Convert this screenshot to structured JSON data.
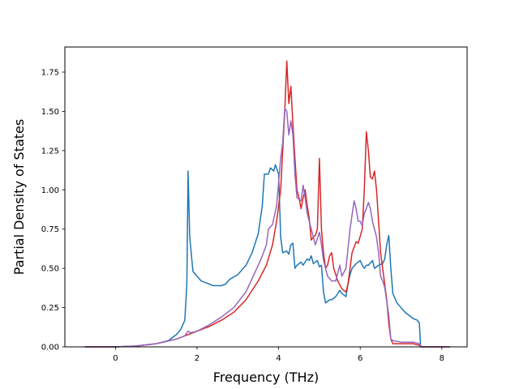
{
  "chart_data": {
    "type": "line",
    "title": "",
    "xlabel": "Frequency (THz)",
    "ylabel": "Partial Density of States",
    "xlim": [
      -1.24,
      8.62
    ],
    "ylim": [
      0.0,
      1.91
    ],
    "xticks": [
      0,
      2,
      4,
      6,
      8
    ],
    "xtick_labels": [
      "0",
      "2",
      "4",
      "6",
      "8"
    ],
    "yticks": [
      0.0,
      0.25,
      0.5,
      0.75,
      1.0,
      1.25,
      1.5,
      1.75
    ],
    "ytick_labels": [
      "0.00",
      "0.25",
      "0.50",
      "0.75",
      "1.00",
      "1.25",
      "1.50",
      "1.75"
    ],
    "grid": false,
    "legend": "none",
    "series": [
      {
        "color": "#1f77b4",
        "points": [
          [
            -0.75,
            0
          ],
          [
            0,
            0
          ],
          [
            0.5,
            0.005
          ],
          [
            1.0,
            0.02
          ],
          [
            1.3,
            0.04
          ],
          [
            1.5,
            0.08
          ],
          [
            1.6,
            0.11
          ],
          [
            1.7,
            0.17
          ],
          [
            1.75,
            0.4
          ],
          [
            1.78,
            1.12
          ],
          [
            1.82,
            0.7
          ],
          [
            1.9,
            0.48
          ],
          [
            2.0,
            0.45
          ],
          [
            2.1,
            0.42
          ],
          [
            2.2,
            0.41
          ],
          [
            2.4,
            0.39
          ],
          [
            2.6,
            0.39
          ],
          [
            2.7,
            0.4
          ],
          [
            2.8,
            0.43
          ],
          [
            3.0,
            0.46
          ],
          [
            3.2,
            0.52
          ],
          [
            3.35,
            0.6
          ],
          [
            3.5,
            0.72
          ],
          [
            3.6,
            0.9
          ],
          [
            3.65,
            1.1
          ],
          [
            3.75,
            1.1
          ],
          [
            3.8,
            1.14
          ],
          [
            3.88,
            1.12
          ],
          [
            3.92,
            1.16
          ],
          [
            4.0,
            1.1
          ],
          [
            4.05,
            0.7
          ],
          [
            4.1,
            0.6
          ],
          [
            4.2,
            0.61
          ],
          [
            4.25,
            0.59
          ],
          [
            4.3,
            0.65
          ],
          [
            4.35,
            0.66
          ],
          [
            4.4,
            0.5
          ],
          [
            4.45,
            0.52
          ],
          [
            4.55,
            0.54
          ],
          [
            4.6,
            0.52
          ],
          [
            4.7,
            0.56
          ],
          [
            4.75,
            0.55
          ],
          [
            4.8,
            0.58
          ],
          [
            4.85,
            0.53
          ],
          [
            4.95,
            0.55
          ],
          [
            5.0,
            0.51
          ],
          [
            5.05,
            0.52
          ],
          [
            5.1,
            0.35
          ],
          [
            5.15,
            0.28
          ],
          [
            5.25,
            0.3
          ],
          [
            5.3,
            0.3
          ],
          [
            5.4,
            0.32
          ],
          [
            5.5,
            0.36
          ],
          [
            5.55,
            0.34
          ],
          [
            5.6,
            0.33
          ],
          [
            5.65,
            0.32
          ],
          [
            5.7,
            0.4
          ],
          [
            5.75,
            0.46
          ],
          [
            5.8,
            0.5
          ],
          [
            5.9,
            0.53
          ],
          [
            6.0,
            0.55
          ],
          [
            6.05,
            0.52
          ],
          [
            6.1,
            0.5
          ],
          [
            6.15,
            0.52
          ],
          [
            6.2,
            0.52
          ],
          [
            6.3,
            0.55
          ],
          [
            6.35,
            0.5
          ],
          [
            6.45,
            0.52
          ],
          [
            6.55,
            0.53
          ],
          [
            6.6,
            0.56
          ],
          [
            6.65,
            0.65
          ],
          [
            6.7,
            0.71
          ],
          [
            6.75,
            0.5
          ],
          [
            6.8,
            0.34
          ],
          [
            6.9,
            0.28
          ],
          [
            7.0,
            0.25
          ],
          [
            7.1,
            0.22
          ],
          [
            7.2,
            0.2
          ],
          [
            7.3,
            0.18
          ],
          [
            7.4,
            0.17
          ],
          [
            7.45,
            0.15
          ],
          [
            7.48,
            0.0
          ],
          [
            8.1,
            0.0
          ]
        ]
      },
      {
        "color": "#d62728",
        "points": [
          [
            -0.75,
            0
          ],
          [
            0,
            0
          ],
          [
            0.5,
            0.005
          ],
          [
            1.0,
            0.02
          ],
          [
            1.5,
            0.05
          ],
          [
            1.7,
            0.07
          ],
          [
            1.8,
            0.08
          ],
          [
            2.0,
            0.1
          ],
          [
            2.3,
            0.13
          ],
          [
            2.6,
            0.17
          ],
          [
            2.9,
            0.22
          ],
          [
            3.2,
            0.3
          ],
          [
            3.5,
            0.42
          ],
          [
            3.7,
            0.52
          ],
          [
            3.85,
            0.65
          ],
          [
            3.95,
            0.8
          ],
          [
            4.05,
            1.0
          ],
          [
            4.1,
            1.25
          ],
          [
            4.15,
            1.5
          ],
          [
            4.2,
            1.82
          ],
          [
            4.25,
            1.55
          ],
          [
            4.3,
            1.66
          ],
          [
            4.35,
            1.42
          ],
          [
            4.4,
            1.2
          ],
          [
            4.45,
            1.0
          ],
          [
            4.5,
            0.95
          ],
          [
            4.55,
            0.88
          ],
          [
            4.6,
            0.95
          ],
          [
            4.65,
            1.0
          ],
          [
            4.7,
            0.9
          ],
          [
            4.75,
            0.82
          ],
          [
            4.8,
            0.68
          ],
          [
            4.85,
            0.7
          ],
          [
            4.9,
            0.71
          ],
          [
            4.95,
            0.75
          ],
          [
            5.0,
            1.2
          ],
          [
            5.05,
            0.75
          ],
          [
            5.1,
            0.6
          ],
          [
            5.15,
            0.5
          ],
          [
            5.2,
            0.52
          ],
          [
            5.25,
            0.58
          ],
          [
            5.3,
            0.6
          ],
          [
            5.35,
            0.5
          ],
          [
            5.45,
            0.42
          ],
          [
            5.55,
            0.37
          ],
          [
            5.65,
            0.35
          ],
          [
            5.7,
            0.4
          ],
          [
            5.8,
            0.6
          ],
          [
            5.9,
            0.67
          ],
          [
            5.95,
            0.66
          ],
          [
            6.05,
            0.75
          ],
          [
            6.1,
            1.0
          ],
          [
            6.15,
            1.37
          ],
          [
            6.2,
            1.25
          ],
          [
            6.25,
            1.08
          ],
          [
            6.3,
            1.07
          ],
          [
            6.35,
            1.12
          ],
          [
            6.4,
            1.0
          ],
          [
            6.45,
            0.8
          ],
          [
            6.5,
            0.6
          ],
          [
            6.6,
            0.4
          ],
          [
            6.65,
            0.3
          ],
          [
            6.7,
            0.15
          ],
          [
            6.75,
            0.05
          ],
          [
            6.8,
            0.02
          ],
          [
            7.3,
            0.02
          ],
          [
            7.45,
            0.01
          ],
          [
            7.5,
            0.0
          ],
          [
            8.2,
            0.0
          ]
        ]
      },
      {
        "color": "#9467bd",
        "points": [
          [
            -0.75,
            0
          ],
          [
            0,
            0
          ],
          [
            0.5,
            0.005
          ],
          [
            1.0,
            0.02
          ],
          [
            1.5,
            0.05
          ],
          [
            1.7,
            0.07
          ],
          [
            1.78,
            0.1
          ],
          [
            1.85,
            0.09
          ],
          [
            2.0,
            0.1
          ],
          [
            2.3,
            0.14
          ],
          [
            2.6,
            0.19
          ],
          [
            2.9,
            0.25
          ],
          [
            3.2,
            0.35
          ],
          [
            3.5,
            0.52
          ],
          [
            3.6,
            0.58
          ],
          [
            3.7,
            0.65
          ],
          [
            3.75,
            0.75
          ],
          [
            3.85,
            0.78
          ],
          [
            3.95,
            0.9
          ],
          [
            4.05,
            1.2
          ],
          [
            4.1,
            1.3
          ],
          [
            4.15,
            1.52
          ],
          [
            4.2,
            1.5
          ],
          [
            4.25,
            1.35
          ],
          [
            4.3,
            1.44
          ],
          [
            4.35,
            1.35
          ],
          [
            4.4,
            1.1
          ],
          [
            4.45,
            0.95
          ],
          [
            4.55,
            0.93
          ],
          [
            4.6,
            1.03
          ],
          [
            4.65,
            0.95
          ],
          [
            4.7,
            0.85
          ],
          [
            4.8,
            0.75
          ],
          [
            4.9,
            0.65
          ],
          [
            5.0,
            0.73
          ],
          [
            5.05,
            0.65
          ],
          [
            5.1,
            0.55
          ],
          [
            5.2,
            0.45
          ],
          [
            5.3,
            0.42
          ],
          [
            5.4,
            0.42
          ],
          [
            5.5,
            0.52
          ],
          [
            5.55,
            0.45
          ],
          [
            5.65,
            0.5
          ],
          [
            5.75,
            0.75
          ],
          [
            5.85,
            0.93
          ],
          [
            5.9,
            0.88
          ],
          [
            5.95,
            0.8
          ],
          [
            6.0,
            0.8
          ],
          [
            6.05,
            0.77
          ],
          [
            6.1,
            0.85
          ],
          [
            6.15,
            0.88
          ],
          [
            6.2,
            0.92
          ],
          [
            6.25,
            0.88
          ],
          [
            6.3,
            0.8
          ],
          [
            6.4,
            0.7
          ],
          [
            6.45,
            0.6
          ],
          [
            6.5,
            0.45
          ],
          [
            6.55,
            0.42
          ],
          [
            6.6,
            0.38
          ],
          [
            6.7,
            0.2
          ],
          [
            6.75,
            0.05
          ],
          [
            6.8,
            0.04
          ],
          [
            7.0,
            0.03
          ],
          [
            7.3,
            0.03
          ],
          [
            7.45,
            0.02
          ],
          [
            7.5,
            0.0
          ],
          [
            8.2,
            0.0
          ]
        ]
      }
    ]
  }
}
